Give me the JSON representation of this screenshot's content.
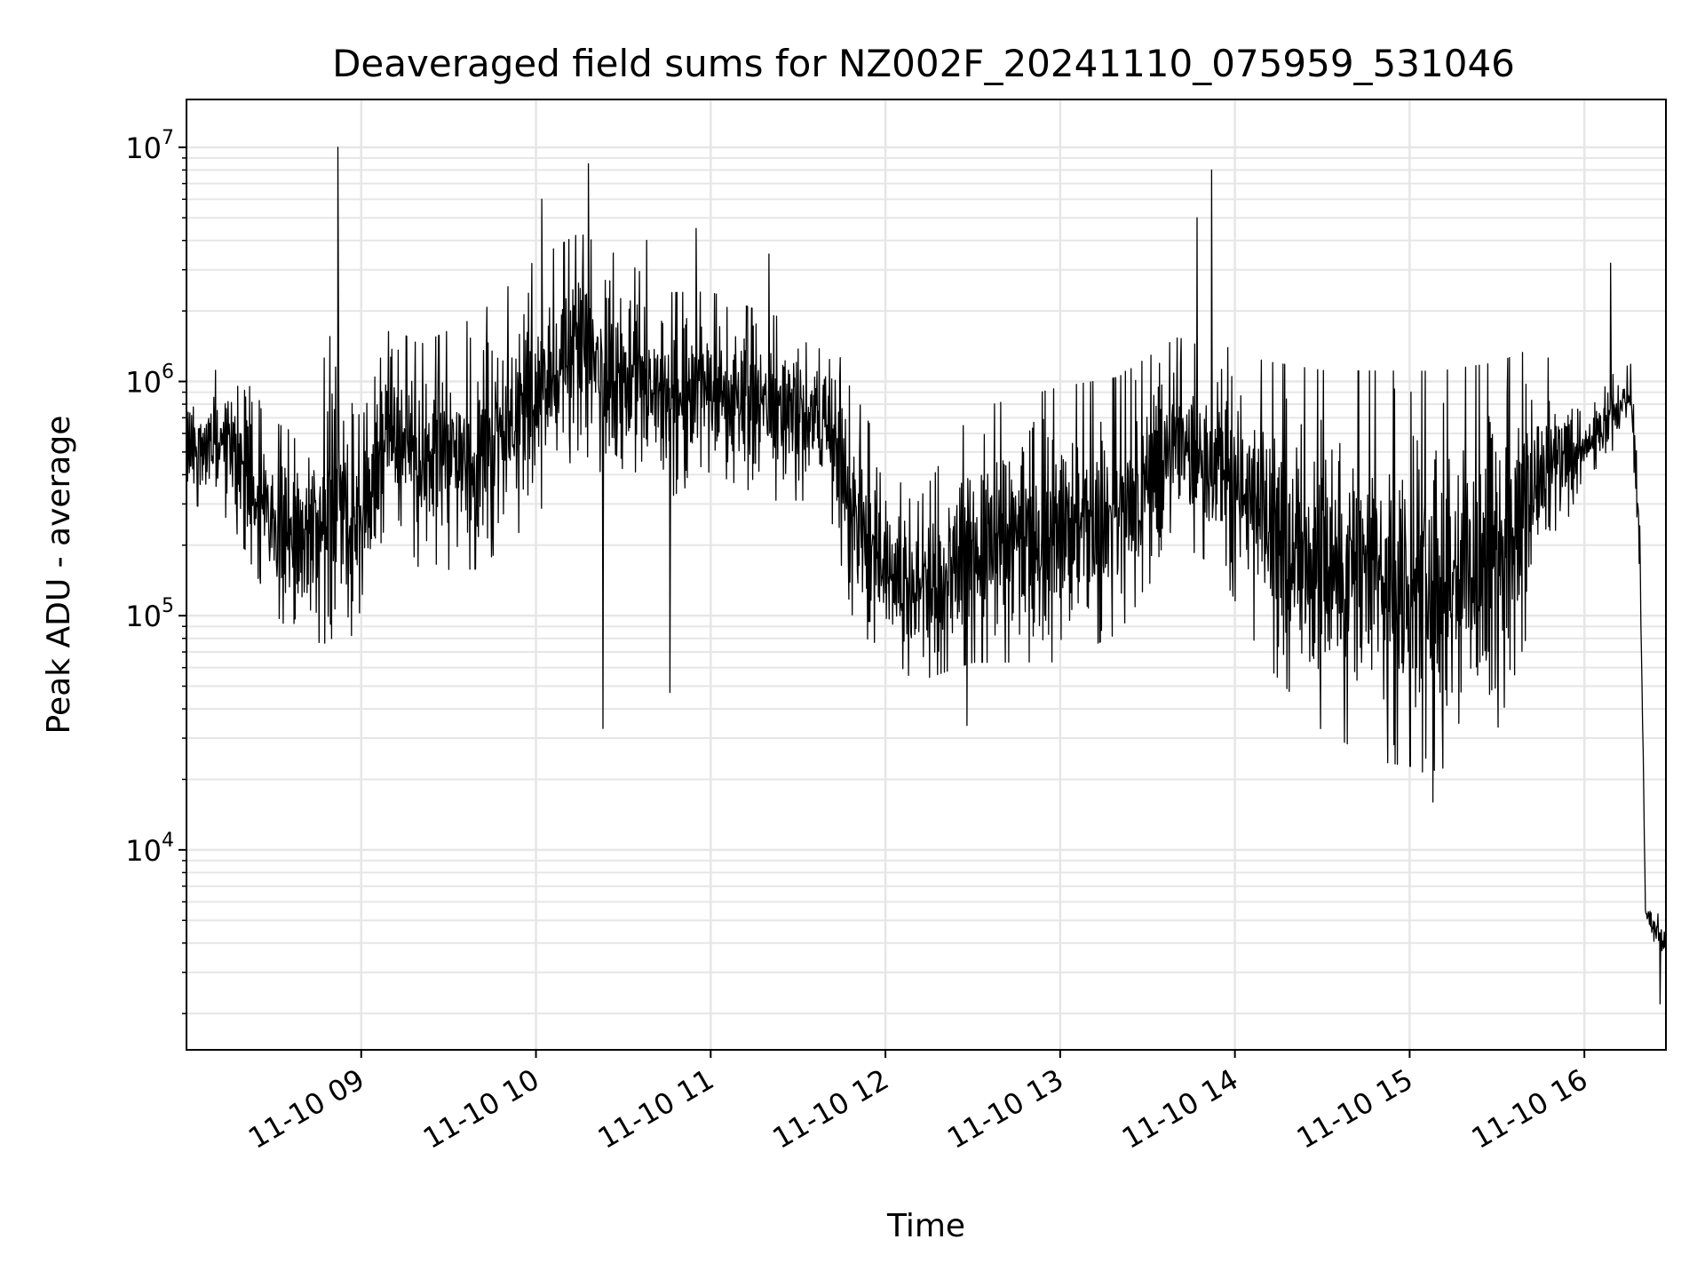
{
  "chart_data": {
    "type": "line",
    "title": "Deaveraged field sums for NZ002F_20241110_075959_531046",
    "xlabel": "Time",
    "ylabel": "Peak ADU - average",
    "yscale": "log",
    "ylim": [
      1400,
      16000000
    ],
    "xlim": [
      "2024-11-10 08:00",
      "2024-11-10 16:28"
    ],
    "x_ticks": [
      "2024-11-10 09:00",
      "2024-11-10 10:00",
      "2024-11-10 11:00",
      "2024-11-10 12:00",
      "2024-11-10 13:00",
      "2024-11-10 14:00",
      "2024-11-10 15:00",
      "2024-11-10 16:00"
    ],
    "x_tick_labels": [
      "11-10 09",
      "11-10 10",
      "11-10 11",
      "11-10 12",
      "11-10 13",
      "11-10 14",
      "11-10 15",
      "11-10 16"
    ],
    "y_ticks": [
      10000,
      100000,
      1000000,
      10000000
    ],
    "y_tick_labels": [
      {
        "base": "10",
        "exp": "4"
      },
      {
        "base": "10",
        "exp": "5"
      },
      {
        "base": "10",
        "exp": "6"
      },
      {
        "base": "10",
        "exp": "7"
      }
    ],
    "grid": true,
    "line_color": "#000000",
    "grid_color": "#e6e6e6",
    "series": [
      {
        "envelope": [
          {
            "x": "2024-11-10 08:00",
            "low": 300000,
            "high": 900000
          },
          {
            "x": "2024-11-10 08:15",
            "low": 250000,
            "high": 1300000
          },
          {
            "x": "2024-11-10 08:30",
            "low": 100000,
            "high": 700000
          },
          {
            "x": "2024-11-10 08:40",
            "low": 70000,
            "high": 600000
          },
          {
            "x": "2024-11-10 08:50",
            "low": 75000,
            "high": 1800000
          },
          {
            "x": "2024-11-10 09:00",
            "low": 80000,
            "high": 700000
          },
          {
            "x": "2024-11-10 09:10",
            "low": 300000,
            "high": 1800000
          },
          {
            "x": "2024-11-10 09:20",
            "low": 150000,
            "high": 1500000
          },
          {
            "x": "2024-11-10 09:40",
            "low": 150000,
            "high": 2000000
          },
          {
            "x": "2024-11-10 10:00",
            "low": 250000,
            "high": 3500000
          },
          {
            "x": "2024-11-10 10:15",
            "low": 500000,
            "high": 4500000
          },
          {
            "x": "2024-11-10 10:30",
            "low": 300000,
            "high": 3500000
          },
          {
            "x": "2024-11-10 10:45",
            "low": 300000,
            "high": 2500000
          },
          {
            "x": "2024-11-10 11:00",
            "low": 400000,
            "high": 2500000
          },
          {
            "x": "2024-11-10 11:20",
            "low": 300000,
            "high": 2000000
          },
          {
            "x": "2024-11-10 11:40",
            "low": 300000,
            "high": 1800000
          },
          {
            "x": "2024-11-10 11:50",
            "low": 80000,
            "high": 900000
          },
          {
            "x": "2024-11-10 12:00",
            "low": 70000,
            "high": 500000
          },
          {
            "x": "2024-11-10 12:10",
            "low": 50000,
            "high": 300000
          },
          {
            "x": "2024-11-10 12:30",
            "low": 60000,
            "high": 800000
          },
          {
            "x": "2024-11-10 13:00",
            "low": 60000,
            "high": 1000000
          },
          {
            "x": "2024-11-10 13:20",
            "low": 80000,
            "high": 1100000
          },
          {
            "x": "2024-11-10 13:40",
            "low": 200000,
            "high": 1600000
          },
          {
            "x": "2024-11-10 13:55",
            "low": 150000,
            "high": 1500000
          },
          {
            "x": "2024-11-10 14:10",
            "low": 60000,
            "high": 1300000
          },
          {
            "x": "2024-11-10 14:30",
            "low": 30000,
            "high": 1200000
          },
          {
            "x": "2024-11-10 14:50",
            "low": 22000,
            "high": 1200000
          },
          {
            "x": "2024-11-10 15:10",
            "low": 20000,
            "high": 1200000
          },
          {
            "x": "2024-11-10 15:30",
            "low": 30000,
            "high": 1300000
          },
          {
            "x": "2024-11-10 15:45",
            "low": 120000,
            "high": 1500000
          },
          {
            "x": "2024-11-10 16:00",
            "low": 400000,
            "high": 700000
          },
          {
            "x": "2024-11-10 16:10",
            "low": 450000,
            "high": 1100000
          },
          {
            "x": "2024-11-10 16:16",
            "low": 700000,
            "high": 1200000
          },
          {
            "x": "2024-11-10 16:19",
            "low": 150000,
            "high": 300000
          },
          {
            "x": "2024-11-10 16:21",
            "low": 5000,
            "high": 6000
          },
          {
            "x": "2024-11-10 16:28",
            "low": 3000,
            "high": 5000
          }
        ],
        "spikes": [
          {
            "x": "2024-11-10 08:52",
            "y": 10000000
          },
          {
            "x": "2024-11-10 10:02",
            "y": 6000000
          },
          {
            "x": "2024-11-10 10:18",
            "y": 8500000
          },
          {
            "x": "2024-11-10 10:23",
            "y": 5000000
          },
          {
            "x": "2024-11-10 10:38",
            "y": 4000000
          },
          {
            "x": "2024-11-10 10:55",
            "y": 4500000
          },
          {
            "x": "2024-11-10 11:20",
            "y": 3500000
          },
          {
            "x": "2024-11-10 13:52",
            "y": 8000000
          },
          {
            "x": "2024-11-10 13:47",
            "y": 5000000
          },
          {
            "x": "2024-11-10 16:09",
            "y": 3200000
          },
          {
            "x": "2024-11-10 10:23",
            "y": 33000
          },
          {
            "x": "2024-11-10 10:46",
            "y": 47000
          },
          {
            "x": "2024-11-10 12:28",
            "y": 34000
          },
          {
            "x": "2024-11-10 15:08",
            "y": 16000
          },
          {
            "x": "2024-11-10 16:26",
            "y": 2200
          }
        ]
      }
    ]
  }
}
